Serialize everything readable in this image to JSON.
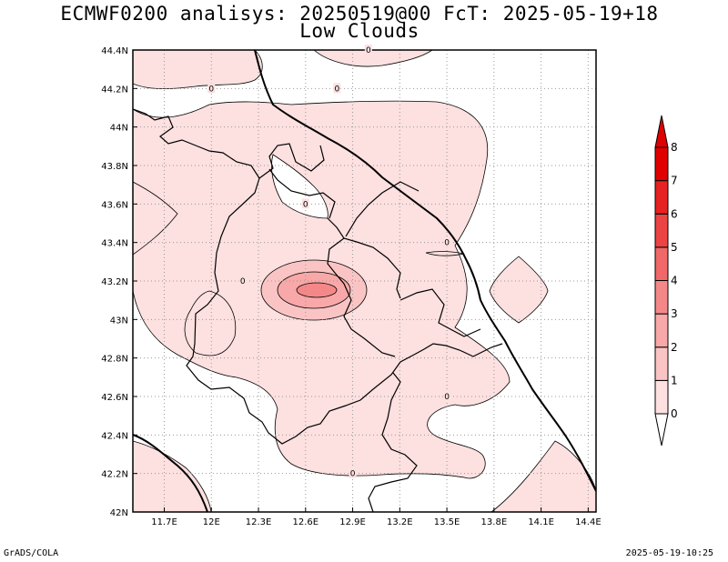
{
  "title": "ECMWF0200 analisys: 20250519@00 FcT: 2025-05-19+18",
  "subtitle": "Low Clouds",
  "footer": {
    "left": "GrADS/COLA",
    "right": "2025-05-19-10:25"
  },
  "chart_data": {
    "type": "heatmap",
    "title": "ECMWF0200 analisys: 20250519@00 FcT: 2025-05-19+18",
    "subtitle": "Low Clouds",
    "xlim": [
      11.5,
      14.45
    ],
    "ylim": [
      42.0,
      44.4
    ],
    "x_ticks": [
      {
        "v": 11.7,
        "label": "11.7E"
      },
      {
        "v": 12.0,
        "label": "12E"
      },
      {
        "v": 12.3,
        "label": "12.3E"
      },
      {
        "v": 12.6,
        "label": "12.6E"
      },
      {
        "v": 12.9,
        "label": "12.9E"
      },
      {
        "v": 13.2,
        "label": "13.2E"
      },
      {
        "v": 13.5,
        "label": "13.5E"
      },
      {
        "v": 13.8,
        "label": "13.8E"
      },
      {
        "v": 14.1,
        "label": "14.1E"
      },
      {
        "v": 14.4,
        "label": "14.4E"
      }
    ],
    "y_ticks": [
      {
        "v": 42.0,
        "label": "42N"
      },
      {
        "v": 42.2,
        "label": "42.2N"
      },
      {
        "v": 42.4,
        "label": "42.4N"
      },
      {
        "v": 42.6,
        "label": "42.6N"
      },
      {
        "v": 42.8,
        "label": "42.8N"
      },
      {
        "v": 43.0,
        "label": "43N"
      },
      {
        "v": 43.2,
        "label": "43.2N"
      },
      {
        "v": 43.4,
        "label": "43.4N"
      },
      {
        "v": 43.6,
        "label": "43.6N"
      },
      {
        "v": 43.8,
        "label": "43.8N"
      },
      {
        "v": 44.0,
        "label": "44N"
      },
      {
        "v": 44.2,
        "label": "44.2N"
      },
      {
        "v": 44.4,
        "label": "44.4N"
      }
    ],
    "grid": true,
    "contour_labels": [
      {
        "x": 13.0,
        "y": 44.4,
        "text": "0"
      },
      {
        "x": 12.0,
        "y": 44.2,
        "text": "0"
      },
      {
        "x": 12.8,
        "y": 44.2,
        "text": "0"
      },
      {
        "x": 12.6,
        "y": 43.6,
        "text": "0"
      },
      {
        "x": 13.5,
        "y": 43.4,
        "text": "0"
      },
      {
        "x": 12.2,
        "y": 43.2,
        "text": "0"
      },
      {
        "x": 13.5,
        "y": 42.6,
        "text": "0"
      },
      {
        "x": 12.9,
        "y": 42.2,
        "text": "0"
      }
    ],
    "colorbar": {
      "labels": [
        "0",
        "1",
        "2",
        "3",
        "4",
        "5",
        "6",
        "7",
        "8"
      ],
      "colors": [
        "#ffffff",
        "#fde0e0",
        "#fbc4c4",
        "#f8a8a8",
        "#f48888",
        "#f06868",
        "#ec4444",
        "#e62222",
        "#e00000"
      ]
    }
  }
}
